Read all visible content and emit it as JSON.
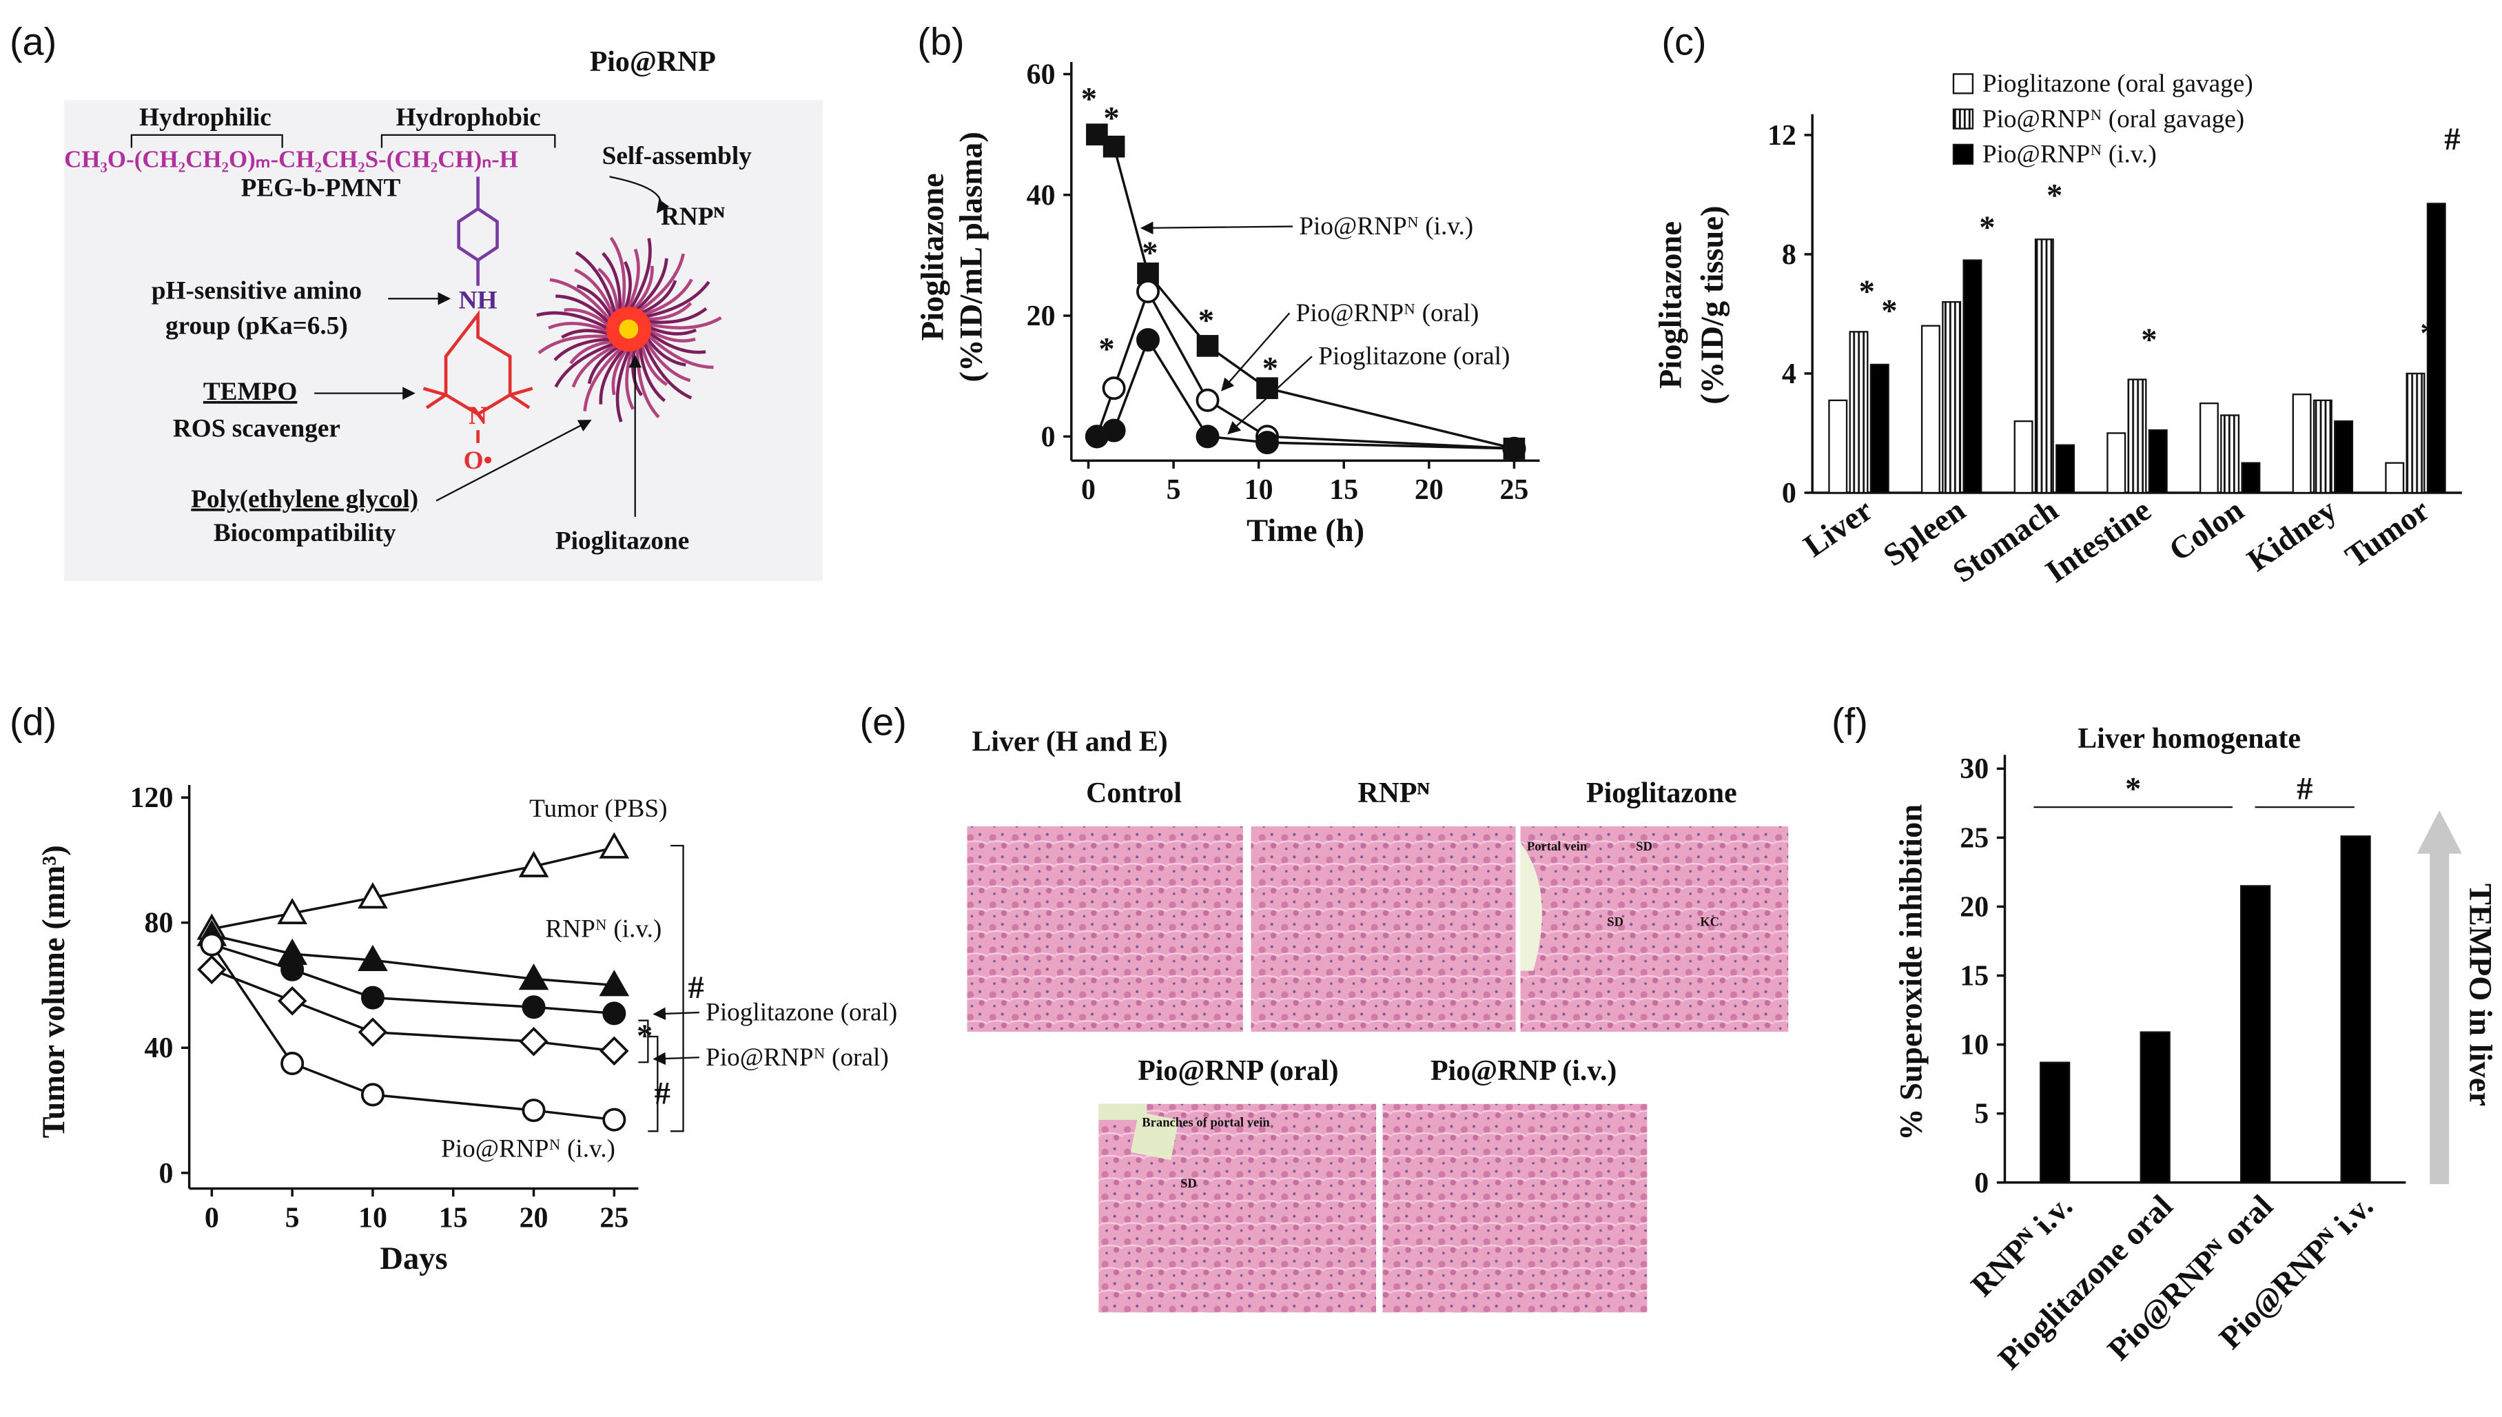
{
  "panel_labels": [
    "(a)",
    "(b)",
    "(c)",
    "(d)",
    "(e)",
    "(f)"
  ],
  "diagram": {
    "title": "Pio@RNP",
    "hydrophilic": "Hydrophilic",
    "hydrophobic": "Hydrophobic",
    "formula": "CH₃O-(CH₂CH₂O)ₘ-CH₂CH₂S-(CH₂CH)ₙ-H",
    "polymer": "PEG-b-PMNT",
    "self_assembly": "Self-assembly",
    "particle": "RNPᴺ",
    "amine": "NH",
    "nitrogen": "N",
    "oxygen": "O•",
    "amino_line1": "pH-sensitive amino",
    "amino_line2": "group (pKa=6.5)",
    "tempo": "TEMPO",
    "tempo_role": "ROS scavenger",
    "peg": "Poly(ethylene glycol)",
    "peg_role": "Biocompatibility",
    "drug": "Pioglitazone"
  },
  "micrographs": {
    "title": "Liver (H and E)",
    "images": [
      {
        "label": "Control",
        "notes": []
      },
      {
        "label": "RNPᴺ",
        "notes": []
      },
      {
        "label": "Pioglitazone",
        "notes": [
          "Portal vein",
          "SD",
          "SD",
          "KC"
        ]
      },
      {
        "label": "Pio@RNP (oral)",
        "notes": [
          "Branches of portal vein",
          "SD"
        ]
      },
      {
        "label": "Pio@RNP (i.v.)",
        "notes": []
      }
    ]
  },
  "chart_data": [
    {
      "type": "line",
      "xlabel": "Time (h)",
      "ylabel": [
        "Pioglitazone",
        "(%ID/mL plasma)"
      ],
      "x": [
        0.5,
        1.5,
        3.5,
        7,
        10.5,
        25
      ],
      "xlim": [
        -1,
        26.5
      ],
      "xticks": [
        0,
        5,
        10,
        15,
        20,
        25
      ],
      "ylim": [
        -4,
        62
      ],
      "yticks": [
        0,
        20,
        40,
        60
      ],
      "series": [
        {
          "name": "Pio@RNPᴺ (i.v.)",
          "marker": "square",
          "filled": true,
          "color": "#111111",
          "values": [
            50,
            48,
            27,
            15,
            8,
            -2
          ]
        },
        {
          "name": "Pio@RNPᴺ (oral)",
          "marker": "circle",
          "filled": false,
          "color": "#111111",
          "values": [
            0,
            8,
            24,
            6,
            0,
            -2
          ]
        },
        {
          "name": "Pioglitazone (oral)",
          "marker": "circle",
          "filled": true,
          "color": "#111111",
          "values": [
            0,
            1,
            16,
            0,
            -1,
            -2
          ]
        }
      ],
      "annotations": [
        "*",
        "*",
        "*",
        "*",
        "*",
        "*"
      ]
    },
    {
      "type": "bar",
      "ylabel": [
        "Pioglitazone",
        "(%ID/g tissue)"
      ],
      "categories": [
        "Liver",
        "Spleen",
        "Stomach",
        "Intestine",
        "Colon",
        "Kidney",
        "Tumor"
      ],
      "ylim": [
        0,
        12.7
      ],
      "yticks": [
        0,
        4,
        8,
        12
      ],
      "series": [
        {
          "name": "Pioglitazone (oral gavage)",
          "color": "#ffffff",
          "hatch": false,
          "values": [
            3.1,
            5.6,
            2.4,
            2.0,
            3.0,
            3.3,
            1.0
          ]
        },
        {
          "name": "Pio@RNPᴺ (oral gavage)",
          "color": "#ffffff",
          "hatch": true,
          "values": [
            5.4,
            6.4,
            8.5,
            3.8,
            2.6,
            3.1,
            4.0
          ]
        },
        {
          "name": "Pio@RNPᴺ (i.v.)",
          "color": "#000000",
          "hatch": false,
          "values": [
            4.3,
            7.8,
            1.6,
            2.1,
            1.0,
            2.4,
            9.7
          ]
        }
      ],
      "legend": "top",
      "annotations": [
        "*",
        "*",
        "*",
        "*",
        "*",
        "*",
        "#"
      ]
    },
    {
      "type": "line",
      "xlabel": "Days",
      "ylabel": [
        "Tumor volume (mm³)"
      ],
      "x": [
        0,
        5,
        10,
        20,
        25
      ],
      "xlim": [
        -1.4,
        26.5
      ],
      "xticks": [
        0,
        5,
        10,
        15,
        20,
        25
      ],
      "ylim": [
        -5,
        124
      ],
      "yticks": [
        0,
        40,
        80,
        120
      ],
      "series": [
        {
          "name": "Tumor (PBS)",
          "marker": "triangle",
          "filled": false,
          "color": "#111111",
          "values": [
            78,
            83,
            88,
            98,
            104
          ]
        },
        {
          "name": "RNPᴺ (i.v.)",
          "marker": "triangle",
          "filled": true,
          "color": "#111111",
          "values": [
            76,
            70,
            68,
            62,
            60
          ]
        },
        {
          "name": "Pioglitazone (oral)",
          "marker": "circle",
          "filled": true,
          "color": "#111111",
          "values": [
            73,
            65,
            56,
            53,
            51
          ]
        },
        {
          "name": "Pio@RNPᴺ (oral)",
          "marker": "diamond",
          "filled": false,
          "color": "#111111",
          "values": [
            65,
            55,
            45,
            42,
            39
          ]
        },
        {
          "name": "Pio@RNPᴺ (i.v.)",
          "marker": "circle",
          "filled": false,
          "color": "#111111",
          "values": [
            73,
            35,
            25,
            20,
            17
          ]
        }
      ],
      "annotations": [
        "#",
        "*",
        "#"
      ]
    },
    {
      "type": "bar",
      "title": "Liver homogenate",
      "ylabel": [
        "% Superoxide inhibition"
      ],
      "categories": [
        "RNPᴺ i.v.",
        "Pioglitazone oral",
        "Pio@RNPᴺ oral",
        "Pio@RNPᴺ i.v."
      ],
      "ylim": [
        0,
        31
      ],
      "yticks": [
        0,
        5,
        10,
        15,
        20,
        25,
        30
      ],
      "series": [
        {
          "color": "#000000",
          "hatch": false,
          "values": [
            8.7,
            10.9,
            21.5,
            25.1
          ]
        }
      ],
      "annotations": [
        "*",
        "#",
        "TEMPO in liver"
      ]
    }
  ]
}
